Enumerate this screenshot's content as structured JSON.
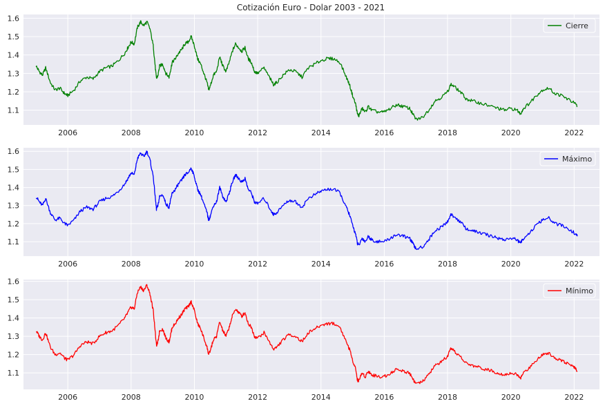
{
  "figure": {
    "title": "Cotización Euro - Dolar 2003 - 2021",
    "background": "#ffffff",
    "axes_facecolor": "#eaeaf2",
    "grid_color": "#ffffff"
  },
  "chart_data": [
    {
      "type": "line",
      "title": "",
      "xlabel": "",
      "ylabel": "",
      "xlim": [
        2004.6,
        2022.8
      ],
      "ylim": [
        1.02,
        1.62
      ],
      "xticks": [
        "2006",
        "2008",
        "2010",
        "2012",
        "2014",
        "2016",
        "2018",
        "2020",
        "2022"
      ],
      "yticks": [
        "1.1",
        "1.2",
        "1.3",
        "1.4",
        "1.5",
        "1.6"
      ],
      "grid": true,
      "legend_position": "top-right",
      "series": [
        {
          "name": "Cierre",
          "color": "#008000",
          "x": [
            2005.0,
            2005.1,
            2005.2,
            2005.3,
            2005.45,
            2005.6,
            2005.75,
            2005.9,
            2006.0,
            2006.2,
            2006.4,
            2006.6,
            2006.8,
            2007.0,
            2007.2,
            2007.4,
            2007.6,
            2007.8,
            2007.9,
            2008.0,
            2008.1,
            2008.2,
            2008.3,
            2008.4,
            2008.5,
            2008.6,
            2008.7,
            2008.75,
            2008.8,
            2008.85,
            2008.9,
            2009.0,
            2009.1,
            2009.2,
            2009.25,
            2009.3,
            2009.4,
            2009.5,
            2009.6,
            2009.7,
            2009.8,
            2009.9,
            2010.0,
            2010.1,
            2010.2,
            2010.3,
            2010.4,
            2010.45,
            2010.5,
            2010.6,
            2010.7,
            2010.8,
            2010.9,
            2011.0,
            2011.1,
            2011.2,
            2011.3,
            2011.4,
            2011.5,
            2011.6,
            2011.7,
            2011.8,
            2011.9,
            2012.0,
            2012.2,
            2012.4,
            2012.5,
            2012.6,
            2012.8,
            2013.0,
            2013.2,
            2013.4,
            2013.6,
            2013.8,
            2014.0,
            2014.2,
            2014.4,
            2014.6,
            2014.8,
            2014.9,
            2015.0,
            2015.1,
            2015.15,
            2015.2,
            2015.3,
            2015.4,
            2015.5,
            2015.6,
            2015.8,
            2016.0,
            2016.2,
            2016.4,
            2016.6,
            2016.8,
            2016.9,
            2017.0,
            2017.2,
            2017.4,
            2017.6,
            2017.8,
            2018.0,
            2018.1,
            2018.2,
            2018.4,
            2018.6,
            2018.8,
            2019.0,
            2019.2,
            2019.4,
            2019.6,
            2019.8,
            2020.0,
            2020.2,
            2020.3,
            2020.4,
            2020.6,
            2020.8,
            2021.0,
            2021.2,
            2021.4,
            2021.6,
            2021.8,
            2022.0,
            2022.1
          ],
          "values": [
            1.34,
            1.31,
            1.29,
            1.33,
            1.25,
            1.21,
            1.22,
            1.19,
            1.18,
            1.21,
            1.26,
            1.28,
            1.27,
            1.31,
            1.33,
            1.34,
            1.37,
            1.41,
            1.44,
            1.47,
            1.46,
            1.55,
            1.58,
            1.56,
            1.58,
            1.54,
            1.45,
            1.36,
            1.27,
            1.29,
            1.34,
            1.35,
            1.3,
            1.28,
            1.32,
            1.36,
            1.38,
            1.41,
            1.43,
            1.46,
            1.47,
            1.5,
            1.45,
            1.38,
            1.35,
            1.3,
            1.25,
            1.21,
            1.23,
            1.29,
            1.31,
            1.39,
            1.34,
            1.31,
            1.36,
            1.42,
            1.46,
            1.44,
            1.42,
            1.44,
            1.38,
            1.36,
            1.31,
            1.3,
            1.33,
            1.27,
            1.24,
            1.25,
            1.29,
            1.32,
            1.31,
            1.28,
            1.33,
            1.35,
            1.37,
            1.38,
            1.38,
            1.36,
            1.28,
            1.24,
            1.18,
            1.13,
            1.08,
            1.07,
            1.11,
            1.09,
            1.12,
            1.1,
            1.09,
            1.09,
            1.11,
            1.13,
            1.12,
            1.11,
            1.08,
            1.05,
            1.06,
            1.1,
            1.15,
            1.17,
            1.2,
            1.24,
            1.23,
            1.2,
            1.16,
            1.15,
            1.14,
            1.13,
            1.12,
            1.11,
            1.1,
            1.11,
            1.1,
            1.08,
            1.11,
            1.14,
            1.18,
            1.21,
            1.22,
            1.19,
            1.18,
            1.16,
            1.14,
            1.12
          ]
        }
      ]
    },
    {
      "type": "line",
      "title": "",
      "xlabel": "",
      "ylabel": "",
      "xlim": [
        2004.6,
        2022.8
      ],
      "ylim": [
        1.02,
        1.62
      ],
      "xticks": [
        "2006",
        "2008",
        "2010",
        "2012",
        "2014",
        "2016",
        "2018",
        "2020",
        "2022"
      ],
      "yticks": [
        "1.1",
        "1.2",
        "1.3",
        "1.4",
        "1.5",
        "1.6"
      ],
      "grid": true,
      "legend_position": "top-right",
      "series": [
        {
          "name": "Máximo",
          "color": "#0000ff",
          "x": [
            2005.0,
            2005.1,
            2005.2,
            2005.3,
            2005.45,
            2005.6,
            2005.75,
            2005.9,
            2006.0,
            2006.2,
            2006.4,
            2006.6,
            2006.8,
            2007.0,
            2007.2,
            2007.4,
            2007.6,
            2007.8,
            2007.9,
            2008.0,
            2008.1,
            2008.2,
            2008.3,
            2008.4,
            2008.5,
            2008.6,
            2008.7,
            2008.75,
            2008.8,
            2008.85,
            2008.9,
            2009.0,
            2009.1,
            2009.2,
            2009.25,
            2009.3,
            2009.4,
            2009.5,
            2009.6,
            2009.7,
            2009.8,
            2009.9,
            2010.0,
            2010.1,
            2010.2,
            2010.3,
            2010.4,
            2010.45,
            2010.5,
            2010.6,
            2010.7,
            2010.8,
            2010.9,
            2011.0,
            2011.1,
            2011.2,
            2011.3,
            2011.4,
            2011.5,
            2011.6,
            2011.7,
            2011.8,
            2011.9,
            2012.0,
            2012.2,
            2012.4,
            2012.5,
            2012.6,
            2012.8,
            2013.0,
            2013.2,
            2013.4,
            2013.6,
            2013.8,
            2014.0,
            2014.2,
            2014.4,
            2014.6,
            2014.8,
            2014.9,
            2015.0,
            2015.1,
            2015.15,
            2015.2,
            2015.3,
            2015.4,
            2015.5,
            2015.6,
            2015.8,
            2016.0,
            2016.2,
            2016.4,
            2016.6,
            2016.8,
            2016.9,
            2017.0,
            2017.2,
            2017.4,
            2017.6,
            2017.8,
            2018.0,
            2018.1,
            2018.2,
            2018.4,
            2018.6,
            2018.8,
            2019.0,
            2019.2,
            2019.4,
            2019.6,
            2019.8,
            2020.0,
            2020.2,
            2020.3,
            2020.4,
            2020.6,
            2020.8,
            2021.0,
            2021.2,
            2021.4,
            2021.6,
            2021.8,
            2022.0,
            2022.1
          ],
          "values": [
            1.35,
            1.32,
            1.3,
            1.34,
            1.26,
            1.22,
            1.23,
            1.2,
            1.19,
            1.22,
            1.27,
            1.29,
            1.28,
            1.32,
            1.34,
            1.35,
            1.38,
            1.42,
            1.45,
            1.48,
            1.47,
            1.56,
            1.59,
            1.57,
            1.6,
            1.55,
            1.46,
            1.37,
            1.28,
            1.3,
            1.35,
            1.36,
            1.31,
            1.29,
            1.33,
            1.37,
            1.39,
            1.42,
            1.44,
            1.47,
            1.48,
            1.51,
            1.46,
            1.39,
            1.36,
            1.31,
            1.26,
            1.22,
            1.24,
            1.3,
            1.32,
            1.4,
            1.35,
            1.32,
            1.37,
            1.43,
            1.47,
            1.45,
            1.43,
            1.45,
            1.39,
            1.37,
            1.32,
            1.31,
            1.34,
            1.28,
            1.25,
            1.26,
            1.3,
            1.33,
            1.32,
            1.29,
            1.34,
            1.36,
            1.38,
            1.39,
            1.39,
            1.37,
            1.29,
            1.25,
            1.19,
            1.14,
            1.09,
            1.08,
            1.12,
            1.1,
            1.13,
            1.11,
            1.1,
            1.1,
            1.12,
            1.14,
            1.13,
            1.12,
            1.09,
            1.06,
            1.07,
            1.11,
            1.16,
            1.18,
            1.21,
            1.25,
            1.24,
            1.21,
            1.17,
            1.16,
            1.15,
            1.14,
            1.13,
            1.12,
            1.11,
            1.12,
            1.11,
            1.09,
            1.12,
            1.15,
            1.19,
            1.22,
            1.23,
            1.2,
            1.19,
            1.17,
            1.15,
            1.13
          ]
        }
      ]
    },
    {
      "type": "line",
      "title": "",
      "xlabel": "",
      "ylabel": "",
      "xlim": [
        2004.6,
        2022.8
      ],
      "ylim": [
        1.01,
        1.61
      ],
      "xticks": [
        "2006",
        "2008",
        "2010",
        "2012",
        "2014",
        "2016",
        "2018",
        "2020",
        "2022"
      ],
      "yticks": [
        "1.1",
        "1.2",
        "1.3",
        "1.4",
        "1.5",
        "1.6"
      ],
      "grid": true,
      "legend_position": "top-right",
      "series": [
        {
          "name": "Mínimo",
          "color": "#ff0000",
          "x": [
            2005.0,
            2005.1,
            2005.2,
            2005.3,
            2005.45,
            2005.6,
            2005.75,
            2005.9,
            2006.0,
            2006.2,
            2006.4,
            2006.6,
            2006.8,
            2007.0,
            2007.2,
            2007.4,
            2007.6,
            2007.8,
            2007.9,
            2008.0,
            2008.1,
            2008.2,
            2008.3,
            2008.4,
            2008.5,
            2008.6,
            2008.7,
            2008.75,
            2008.8,
            2008.85,
            2008.9,
            2009.0,
            2009.1,
            2009.2,
            2009.25,
            2009.3,
            2009.4,
            2009.5,
            2009.6,
            2009.7,
            2009.8,
            2009.9,
            2010.0,
            2010.1,
            2010.2,
            2010.3,
            2010.4,
            2010.45,
            2010.5,
            2010.6,
            2010.7,
            2010.8,
            2010.9,
            2011.0,
            2011.1,
            2011.2,
            2011.3,
            2011.4,
            2011.5,
            2011.6,
            2011.7,
            2011.8,
            2011.9,
            2012.0,
            2012.2,
            2012.4,
            2012.5,
            2012.6,
            2012.8,
            2013.0,
            2013.2,
            2013.4,
            2013.6,
            2013.8,
            2014.0,
            2014.2,
            2014.4,
            2014.6,
            2014.8,
            2014.9,
            2015.0,
            2015.1,
            2015.15,
            2015.2,
            2015.3,
            2015.4,
            2015.5,
            2015.6,
            2015.8,
            2016.0,
            2016.2,
            2016.4,
            2016.6,
            2016.8,
            2016.9,
            2017.0,
            2017.2,
            2017.4,
            2017.6,
            2017.8,
            2018.0,
            2018.1,
            2018.2,
            2018.4,
            2018.6,
            2018.8,
            2019.0,
            2019.2,
            2019.4,
            2019.6,
            2019.8,
            2020.0,
            2020.2,
            2020.3,
            2020.4,
            2020.6,
            2020.8,
            2021.0,
            2021.2,
            2021.4,
            2021.6,
            2021.8,
            2022.0,
            2022.1
          ],
          "values": [
            1.33,
            1.3,
            1.28,
            1.32,
            1.24,
            1.2,
            1.21,
            1.18,
            1.17,
            1.2,
            1.25,
            1.27,
            1.26,
            1.3,
            1.32,
            1.33,
            1.36,
            1.4,
            1.43,
            1.46,
            1.45,
            1.54,
            1.57,
            1.55,
            1.58,
            1.53,
            1.44,
            1.35,
            1.25,
            1.27,
            1.33,
            1.34,
            1.29,
            1.27,
            1.31,
            1.35,
            1.37,
            1.4,
            1.42,
            1.45,
            1.46,
            1.49,
            1.44,
            1.37,
            1.34,
            1.29,
            1.24,
            1.2,
            1.22,
            1.28,
            1.3,
            1.38,
            1.33,
            1.3,
            1.35,
            1.41,
            1.45,
            1.43,
            1.41,
            1.43,
            1.37,
            1.35,
            1.3,
            1.29,
            1.32,
            1.26,
            1.23,
            1.24,
            1.28,
            1.31,
            1.3,
            1.27,
            1.32,
            1.34,
            1.36,
            1.37,
            1.37,
            1.35,
            1.27,
            1.23,
            1.17,
            1.12,
            1.06,
            1.06,
            1.1,
            1.08,
            1.11,
            1.09,
            1.08,
            1.08,
            1.1,
            1.12,
            1.11,
            1.1,
            1.07,
            1.04,
            1.05,
            1.09,
            1.14,
            1.16,
            1.19,
            1.23,
            1.22,
            1.19,
            1.15,
            1.14,
            1.13,
            1.12,
            1.11,
            1.1,
            1.09,
            1.1,
            1.09,
            1.07,
            1.1,
            1.13,
            1.17,
            1.2,
            1.21,
            1.18,
            1.17,
            1.15,
            1.13,
            1.11
          ]
        }
      ]
    }
  ]
}
